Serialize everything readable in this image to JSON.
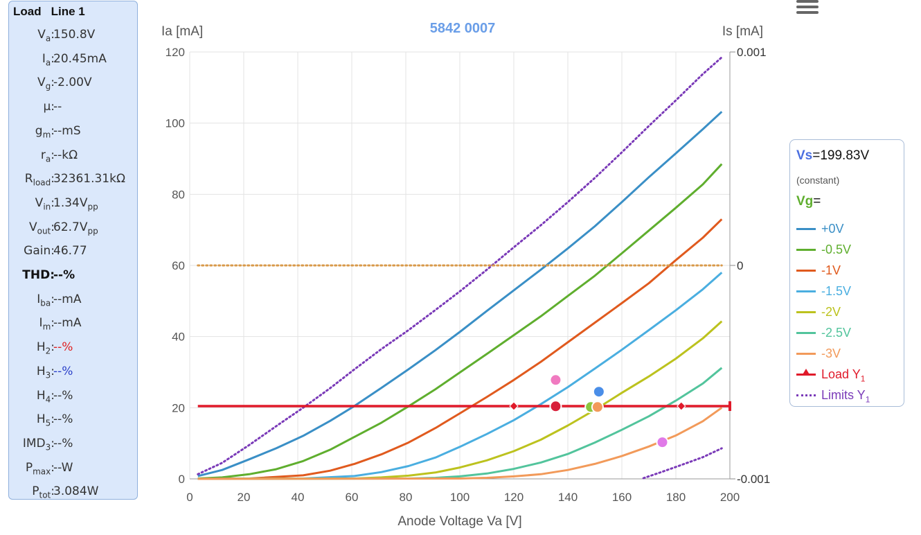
{
  "readout": {
    "header": [
      "Load",
      "Line 1"
    ],
    "rows": [
      {
        "label": "V",
        "sub": "a",
        "value": "150.8V",
        "vsub": ""
      },
      {
        "label": "I",
        "sub": "a",
        "value": "20.45mA",
        "vsub": ""
      },
      {
        "label": "V",
        "sub": "g",
        "value": "-2.00V",
        "vsub": ""
      },
      {
        "label": "μ",
        "sub": "",
        "value": "--",
        "vsub": ""
      },
      {
        "label": "g",
        "sub": "m",
        "value": "--mS",
        "vsub": ""
      },
      {
        "label": "r",
        "sub": "a",
        "value": "--kΩ",
        "vsub": ""
      },
      {
        "label": "R",
        "sub": "load",
        "value": "32361.31kΩ",
        "vsub": ""
      },
      {
        "label": "V",
        "sub": "in",
        "value": "1.34V",
        "vsub": "pp"
      },
      {
        "label": "V",
        "sub": "out",
        "value": "62.7V",
        "vsub": "pp"
      },
      {
        "label": "Gain",
        "sub": "",
        "value": "46.77",
        "vsub": ""
      },
      {
        "label": "THD",
        "sub": "",
        "value": "--%",
        "vsub": "",
        "style": "bold"
      },
      {
        "label": "I",
        "sub": "ba",
        "value": "--mA",
        "vsub": ""
      },
      {
        "label": "I",
        "sub": "m",
        "value": "--mA",
        "vsub": ""
      },
      {
        "label": "H",
        "sub": "2",
        "value": "--%",
        "vsub": "",
        "vstyle": "red"
      },
      {
        "label": "H",
        "sub": "3",
        "value": "--%",
        "vsub": "",
        "vstyle": "blue"
      },
      {
        "label": "H",
        "sub": "4",
        "value": "--%",
        "vsub": ""
      },
      {
        "label": "H",
        "sub": "5",
        "value": "--%",
        "vsub": ""
      },
      {
        "label": "IMD",
        "sub": "3",
        "value": "--%",
        "vsub": ""
      },
      {
        "label": "P",
        "sub": "max",
        "value": "--W",
        "vsub": ""
      },
      {
        "label": "P",
        "sub": "tot",
        "value": "3.084W",
        "vsub": ""
      }
    ]
  },
  "menu_icon": "hamburger-menu-icon",
  "legend": {
    "vs_key": "Vs",
    "vs_value": "=199.83V",
    "constant": "(constant)",
    "vg_key": "Vg",
    "vg_eq": "=",
    "items": [
      {
        "label": "+0V",
        "color": "#3a8fc6"
      },
      {
        "label": "-0.5V",
        "color": "#5fae2e"
      },
      {
        "label": "-1V",
        "color": "#e05a1e"
      },
      {
        "label": "-1.5V",
        "color": "#4aaee0"
      },
      {
        "label": "-2V",
        "color": "#bcc21e"
      },
      {
        "label": "-2.5V",
        "color": "#52c49c"
      },
      {
        "label": "-3V",
        "color": "#f29a5a"
      },
      {
        "label": "Load Y",
        "sub": "1",
        "color": "#e01a2a"
      },
      {
        "label": "Limits Y",
        "sub": "1",
        "color": "#7a3ab8"
      }
    ]
  },
  "chart_data": {
    "type": "line",
    "title": "5842 0007",
    "xlabel": "Anode Voltage Va [V]",
    "ylabel_left": "Ia [mA]",
    "ylabel_right": "Is [mA]",
    "xlim": [
      0,
      200
    ],
    "ylim": [
      0,
      120
    ],
    "ylim_right": [
      -0.001,
      0.001
    ],
    "xticks": [
      0,
      20,
      40,
      60,
      80,
      100,
      120,
      140,
      160,
      180,
      200
    ],
    "yticks": [
      0,
      20,
      40,
      60,
      80,
      100,
      120
    ],
    "yticks_right": [
      "0.001",
      "0",
      "-0.001"
    ],
    "grid": true,
    "series": [
      {
        "name": "+0V",
        "color": "#3a8fc6",
        "x": [
          3,
          12,
          22,
          32,
          42,
          52,
          61,
          71,
          81,
          91,
          100,
          110,
          120,
          130,
          140,
          150,
          160,
          170,
          180,
          190,
          197
        ],
        "y": [
          0.8,
          2.5,
          5.5,
          8.6,
          12.1,
          16.3,
          20.5,
          25.6,
          30.8,
          36.2,
          41.3,
          47.2,
          53.0,
          58.8,
          64.8,
          71.0,
          77.8,
          84.8,
          91.5,
          98.3,
          103.2
        ]
      },
      {
        "name": "-0.5V",
        "color": "#5fae2e",
        "x": [
          3,
          12,
          22,
          32,
          42,
          52,
          61,
          71,
          81,
          91,
          100,
          110,
          120,
          130,
          140,
          150,
          160,
          170,
          180,
          190,
          197
        ],
        "y": [
          0.1,
          0.4,
          1.3,
          2.7,
          5.0,
          8.2,
          11.8,
          15.8,
          20.4,
          25.2,
          29.9,
          35.1,
          40.4,
          45.7,
          51.4,
          57.1,
          63.4,
          69.8,
          76.2,
          82.8,
          88.5
        ]
      },
      {
        "name": "-1V",
        "color": "#e05a1e",
        "x": [
          3,
          22,
          42,
          52,
          61,
          71,
          81,
          91,
          100,
          110,
          120,
          130,
          140,
          150,
          160,
          170,
          180,
          190,
          197
        ],
        "y": [
          0,
          0.1,
          1.0,
          2.3,
          4.2,
          6.9,
          10.2,
          14.3,
          18.4,
          23.0,
          27.8,
          32.9,
          38.4,
          43.9,
          49.4,
          55.0,
          61.5,
          67.8,
          73.0
        ]
      },
      {
        "name": "-1.5V",
        "color": "#4aaee0",
        "x": [
          3,
          42,
          61,
          71,
          81,
          91,
          100,
          110,
          120,
          130,
          140,
          150,
          160,
          170,
          180,
          190,
          197
        ],
        "y": [
          0,
          0.1,
          0.8,
          1.9,
          3.6,
          6.0,
          9.0,
          12.6,
          16.5,
          21.0,
          25.8,
          31.0,
          36.3,
          41.8,
          47.4,
          53.3,
          58.0
        ]
      },
      {
        "name": "-2V",
        "color": "#bcc21e",
        "x": [
          3,
          61,
          71,
          81,
          91,
          100,
          110,
          120,
          130,
          140,
          150,
          160,
          170,
          180,
          190,
          197
        ],
        "y": [
          0,
          0.1,
          0.4,
          0.9,
          1.8,
          3.2,
          5.2,
          7.8,
          11.0,
          15.0,
          19.4,
          24.2,
          28.8,
          33.8,
          39.5,
          44.3
        ]
      },
      {
        "name": "-2.5V",
        "color": "#52c49c",
        "x": [
          3,
          81,
          91,
          100,
          110,
          120,
          130,
          140,
          150,
          160,
          170,
          180,
          190,
          197
        ],
        "y": [
          0,
          0.1,
          0.3,
          0.7,
          1.5,
          2.8,
          4.6,
          7.0,
          10.2,
          13.8,
          17.6,
          22.0,
          26.8,
          31.2
        ]
      },
      {
        "name": "-3V",
        "color": "#f29a5a",
        "x": [
          3,
          100,
          110,
          120,
          130,
          140,
          150,
          160,
          170,
          180,
          190,
          197
        ],
        "y": [
          0,
          0.1,
          0.3,
          0.7,
          1.3,
          2.5,
          4.2,
          6.4,
          9.1,
          12.2,
          16.2,
          20.0
        ]
      },
      {
        "name": "Limits Y1",
        "color": "#7a3ab8",
        "dashed": true,
        "x": [
          3,
          12,
          22,
          32,
          42,
          52,
          61,
          71,
          81,
          91,
          100,
          110,
          120,
          130,
          140,
          150,
          160,
          170,
          180,
          190,
          197
        ],
        "y": [
          1.3,
          4.5,
          9.5,
          14.8,
          20.0,
          25.5,
          30.8,
          36.5,
          41.8,
          47.5,
          52.7,
          58.8,
          65.1,
          71.3,
          77.8,
          84.6,
          91.8,
          99.2,
          106.4,
          113.8,
          118.5
        ]
      },
      {
        "name": "Limits Y1 lower",
        "color": "#7a3ab8",
        "dashed": true,
        "x": [
          168,
          175,
          182,
          190,
          197
        ],
        "y": [
          0.2,
          2.0,
          3.9,
          6.1,
          8.6
        ]
      },
      {
        "name": "Is zero",
        "color": "#d99a4a",
        "dashed": true,
        "x": [
          3,
          197
        ],
        "y": [
          60,
          60
        ]
      }
    ],
    "load_line": {
      "name": "Load Y1",
      "color": "#e01a2a",
      "y": 20.45,
      "x": [
        3,
        200
      ],
      "markers_x": [
        120,
        182
      ]
    },
    "points": [
      {
        "name": "pink-top",
        "x": 135.5,
        "y": 27.8,
        "color": "#f07ac0"
      },
      {
        "name": "blue",
        "x": 151.5,
        "y": 24.5,
        "color": "#4a8ee8"
      },
      {
        "name": "red",
        "x": 135.5,
        "y": 20.4,
        "color": "#d8203a"
      },
      {
        "name": "green",
        "x": 148.5,
        "y": 20.2,
        "color": "#8cc63f"
      },
      {
        "name": "orange",
        "x": 151.0,
        "y": 20.2,
        "color": "#f29a5a"
      },
      {
        "name": "pink-low",
        "x": 175,
        "y": 10.3,
        "color": "#e07ae8"
      }
    ]
  }
}
